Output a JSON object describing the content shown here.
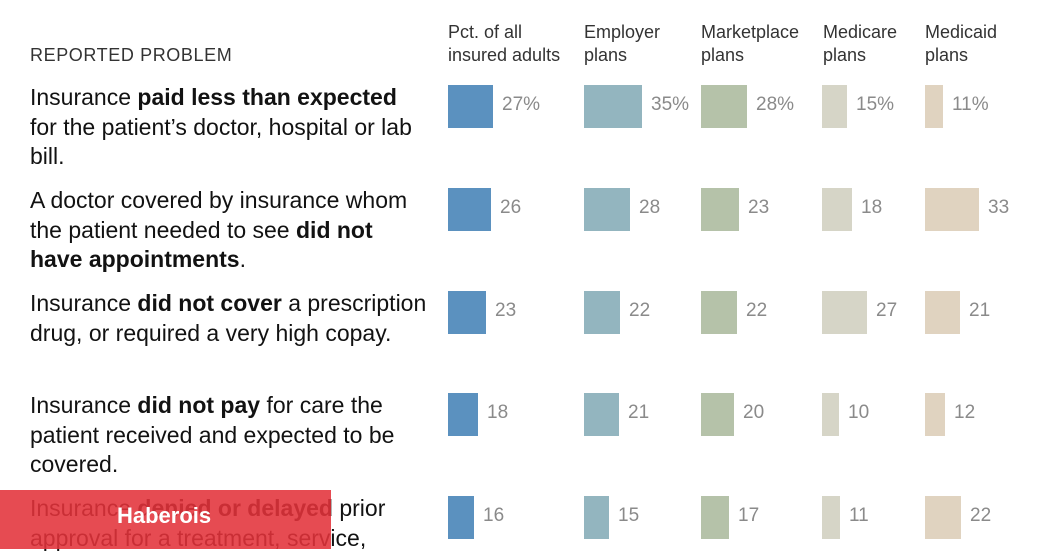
{
  "header": {
    "reported_problem_label": "REPORTED PROBLEM"
  },
  "columns": [
    {
      "line1": "Pct. of all",
      "line2": "insured adults",
      "color": "#5b91bf"
    },
    {
      "line1": "Employer",
      "line2": "plans",
      "color": "#93b5bf"
    },
    {
      "line1": "Marketplace",
      "line2": "plans",
      "color": "#b5c2a9"
    },
    {
      "line1": "Medicare",
      "line2": "plans",
      "color": "#d6d5c7"
    },
    {
      "line1": "Medicaid",
      "line2": "plans",
      "color": "#e0d3c0"
    }
  ],
  "rows": [
    {
      "segments": [
        {
          "t": "Insurance ",
          "b": false
        },
        {
          "t": "paid less than expected",
          "b": true
        },
        {
          "t": " for the patient’s doctor, hospital or lab bill.",
          "b": false
        }
      ]
    },
    {
      "segments": [
        {
          "t": "A doctor covered by insurance whom the patient needed to see ",
          "b": false
        },
        {
          "t": "did not have appointments",
          "b": true
        },
        {
          "t": ".",
          "b": false
        }
      ]
    },
    {
      "segments": [
        {
          "t": "Insurance ",
          "b": false
        },
        {
          "t": "did not cover",
          "b": true
        },
        {
          "t": " a prescription drug, or required a very high copay.",
          "b": false
        }
      ]
    },
    {
      "segments": [
        {
          "t": "Insurance ",
          "b": false
        },
        {
          "t": "did not pay",
          "b": true
        },
        {
          "t": " for care the patient received and expected to be covered.",
          "b": false
        }
      ]
    },
    {
      "segments": [
        {
          "t": "Insurance ",
          "b": false
        },
        {
          "t": "denied or delayed",
          "b": true
        },
        {
          "t": " prior approval for a treatment, service,",
          "b": false
        }
      ]
    }
  ],
  "chart_data": {
    "type": "table",
    "unit": "%",
    "categories": [
      "Insurance paid less than expected for the patient’s doctor, hospital or lab bill.",
      "A doctor covered by insurance whom the patient needed to see did not have appointments.",
      "Insurance did not cover a prescription drug, or required a very high copay.",
      "Insurance did not pay for care the patient received and expected to be covered.",
      "Insurance denied or delayed prior approval for a treatment, service,"
    ],
    "series": [
      {
        "name": "Pct. of all insured adults",
        "values": [
          27,
          26,
          23,
          18,
          16
        ],
        "labels": [
          "27%",
          "26",
          "23",
          "18",
          "16"
        ]
      },
      {
        "name": "Employer plans",
        "values": [
          35,
          28,
          22,
          21,
          15
        ],
        "labels": [
          "35%",
          "28",
          "22",
          "21",
          "15"
        ]
      },
      {
        "name": "Marketplace plans",
        "values": [
          28,
          23,
          22,
          20,
          17
        ],
        "labels": [
          "28%",
          "23",
          "22",
          "20",
          "17"
        ]
      },
      {
        "name": "Medicare plans",
        "values": [
          15,
          18,
          27,
          10,
          11
        ],
        "labels": [
          "15%",
          "18",
          "27",
          "10",
          "11"
        ]
      },
      {
        "name": "Medicaid plans",
        "values": [
          11,
          33,
          21,
          12,
          22
        ],
        "labels": [
          "11%",
          "33",
          "21",
          "12",
          "22"
        ]
      }
    ]
  },
  "banner": {
    "text": "Haberois",
    "color": "#e2323a"
  }
}
